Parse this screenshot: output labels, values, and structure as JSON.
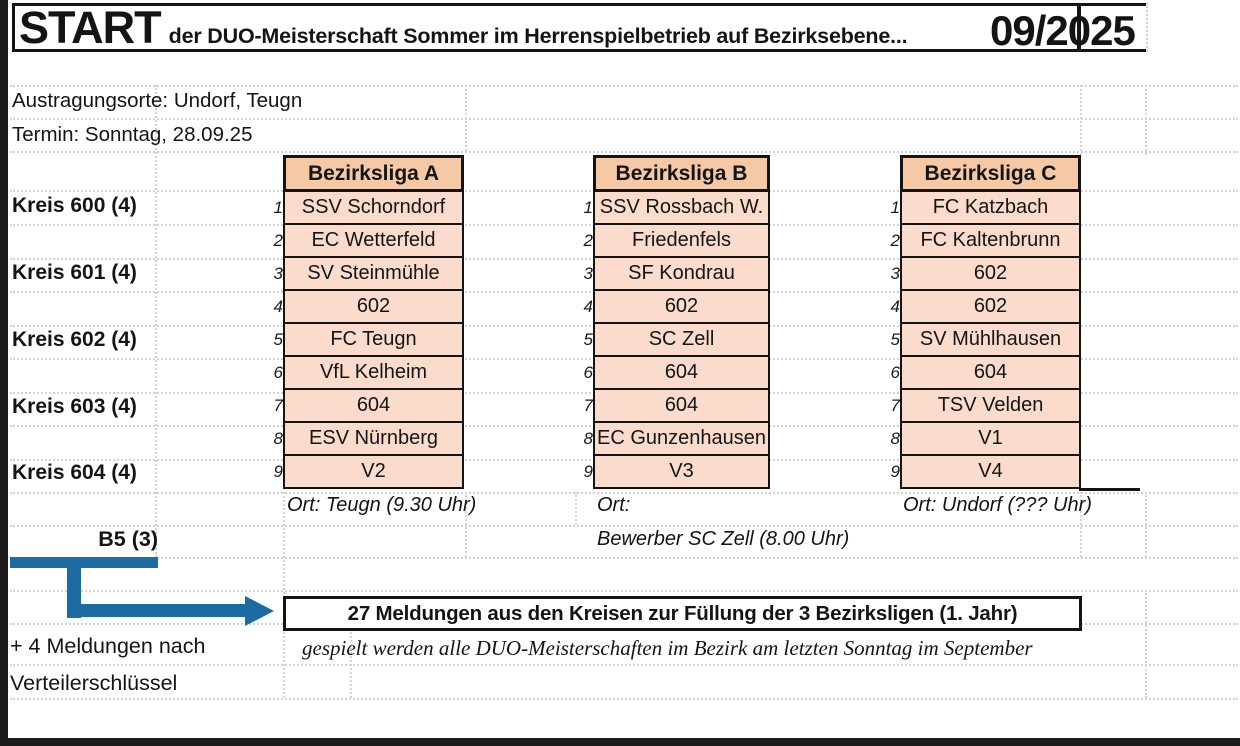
{
  "header": {
    "title": "START",
    "subtitle": "der DUO-Meisterschaft Sommer im Herrenspielbetrieb auf Bezirksebene...",
    "period": "09/2025"
  },
  "info": {
    "venues": "Austragungsorte: Undorf, Teugn",
    "date": "Termin: Sonntag, 28.09.25"
  },
  "kreis_labels": [
    "Kreis 600 (4)",
    "Kreis 601 (4)",
    "Kreis 602 (4)",
    "Kreis 603 (4)",
    "Kreis 604 (4)"
  ],
  "leagues": [
    {
      "name": "Bezirksliga A",
      "entries": [
        {
          "num": "1",
          "team": "SSV Schorndorf"
        },
        {
          "num": "2",
          "team": "EC Wetterfeld"
        },
        {
          "num": "3",
          "team": "SV Steinmühle"
        },
        {
          "num": "4",
          "team": "602"
        },
        {
          "num": "5",
          "team": "FC Teugn"
        },
        {
          "num": "6",
          "team": "VfL Kelheim"
        },
        {
          "num": "7",
          "team": "604"
        },
        {
          "num": "8",
          "team": "ESV Nürnberg"
        },
        {
          "num": "9",
          "team": "V2"
        }
      ],
      "venue_note": "Ort: Teugn (9.30 Uhr)"
    },
    {
      "name": "Bezirksliga B",
      "entries": [
        {
          "num": "1",
          "team": "SSV Rossbach W."
        },
        {
          "num": "2",
          "team": "Friedenfels"
        },
        {
          "num": "3",
          "team": "SF Kondrau"
        },
        {
          "num": "4",
          "team": "602"
        },
        {
          "num": "5",
          "team": "SC Zell"
        },
        {
          "num": "6",
          "team": "604"
        },
        {
          "num": "7",
          "team": "604"
        },
        {
          "num": "8",
          "team": "EC Gunzenhausen"
        },
        {
          "num": "9",
          "team": "V3"
        }
      ],
      "venue_note": "Ort:",
      "extra_note": "Bewerber SC Zell (8.00 Uhr)"
    },
    {
      "name": "Bezirksliga C",
      "entries": [
        {
          "num": "1",
          "team": "FC Katzbach"
        },
        {
          "num": "2",
          "team": "FC Kaltenbrunn"
        },
        {
          "num": "3",
          "team": "602"
        },
        {
          "num": "4",
          "team": "602"
        },
        {
          "num": "5",
          "team": "SV Mühlhausen"
        },
        {
          "num": "6",
          "team": "604"
        },
        {
          "num": "7",
          "team": "TSV Velden"
        },
        {
          "num": "8",
          "team": "V1"
        },
        {
          "num": "9",
          "team": "V4"
        }
      ],
      "venue_note": "Ort: Undorf (??? Uhr)"
    }
  ],
  "b5_label": "B5 (3)",
  "summary_box": "27 Meldungen aus den Kreisen zur Füllung der 3 Bezirksligen (1. Jahr)",
  "summary_note": "gespielt werden alle DUO-Meisterschaften im Bezirk am letzten Sonntag im September",
  "footer": {
    "line1": "+ 4 Meldungen nach",
    "line2": "Verteilerschlüssel"
  },
  "colors": {
    "league_header_cell": "#f5c9a6",
    "league_data_cell": "#fbdccc",
    "arrow_blue": "#1c6ba3",
    "border_black": "#141414"
  }
}
